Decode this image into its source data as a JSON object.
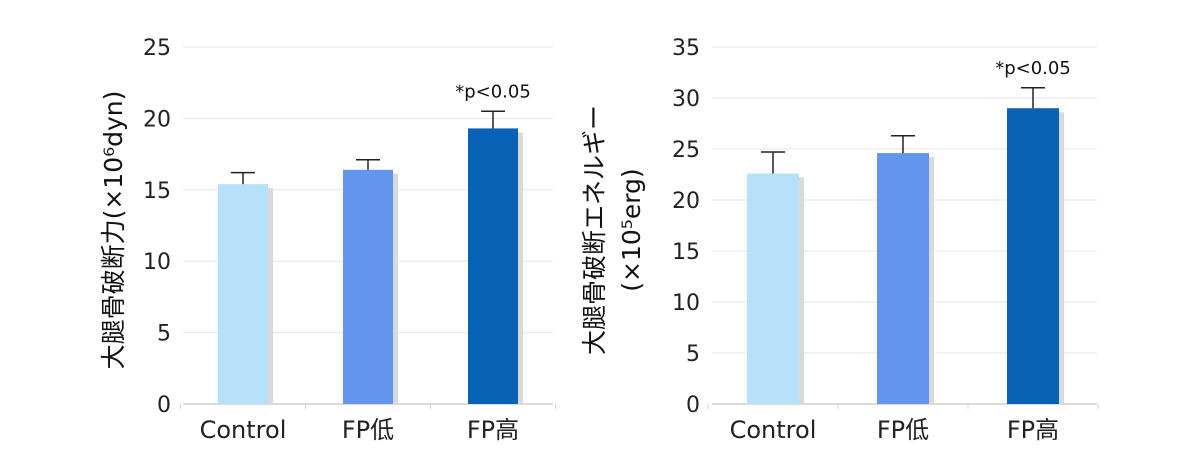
{
  "chart_data": [
    {
      "type": "bar",
      "categories": [
        "Control",
        "FP低",
        "FP高"
      ],
      "values": [
        15.4,
        16.4,
        19.3
      ],
      "errors": [
        0.8,
        0.7,
        1.2
      ],
      "colors": [
        "#b7e1f9",
        "#6495ed",
        "#0a62b7"
      ],
      "ylabel": "大腿骨破断力(×10⁶dyn)",
      "ylim": [
        0,
        25
      ],
      "yticks": [
        0,
        5,
        10,
        15,
        20,
        25
      ],
      "grid": true,
      "annotation": {
        "category": "FP高",
        "text": "*p<0.05"
      }
    },
    {
      "type": "bar",
      "categories": [
        "Control",
        "FP低",
        "FP高"
      ],
      "values": [
        22.6,
        24.6,
        29.0
      ],
      "errors": [
        2.1,
        1.7,
        2.0
      ],
      "colors": [
        "#b7e1f9",
        "#6495ed",
        "#0a62b7"
      ],
      "ylabel": "大腿骨破断エネルギー",
      "ylabel2": "(×10⁵erg)",
      "ylim": [
        0,
        35
      ],
      "yticks": [
        0,
        5,
        10,
        15,
        20,
        25,
        30,
        35
      ],
      "grid": true,
      "annotation": {
        "category": "FP高",
        "text": "*p<0.05"
      }
    }
  ]
}
